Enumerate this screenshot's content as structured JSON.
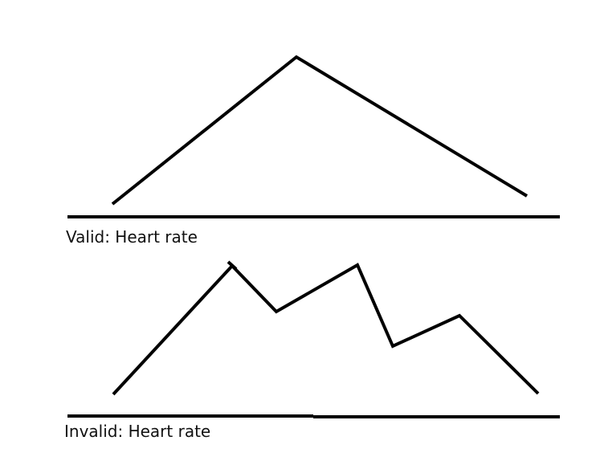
{
  "diagrams": {
    "valid": {
      "caption": "Valid: Heart rate",
      "line_shape": "single peak"
    },
    "invalid": {
      "caption": "Invalid: Heart rate",
      "line_shape": "multiple peaks"
    }
  },
  "colors": {
    "background": "#ffffff",
    "stroke": "#000000",
    "text": "#111111"
  }
}
